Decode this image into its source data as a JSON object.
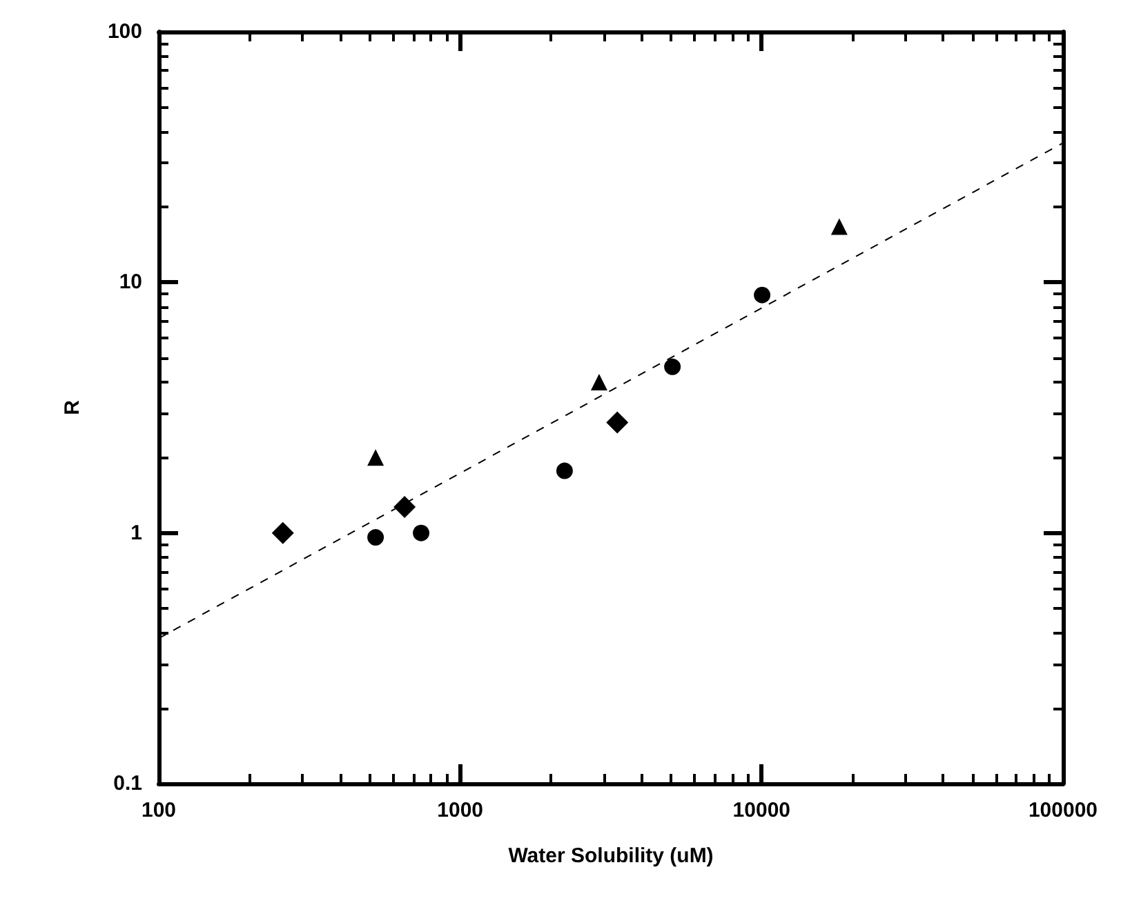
{
  "chart_data": {
    "type": "scatter",
    "xlabel": "Water Solubility (uM)",
    "ylabel": "R",
    "log": "xy",
    "xlim": [
      100,
      100000
    ],
    "xticks": [
      100,
      1000,
      10000,
      100000
    ],
    "ylim": [
      0.1,
      100
    ],
    "yticks": [
      0.1,
      1,
      10,
      100
    ],
    "grid": false,
    "series": [
      {
        "color": "#000000",
        "marker": "circle",
        "x": [
          524,
          742,
          2220,
          5060,
          10040
        ],
        "values": [
          0.96,
          1.0,
          1.77,
          4.6,
          8.9
        ]
      },
      {
        "color": "#000000",
        "marker": "triangle",
        "x": [
          524,
          2890,
          18100
        ],
        "values": [
          2.0,
          4.0,
          16.7
        ]
      },
      {
        "color": "#000000",
        "marker": "diamond",
        "x": [
          258,
          654,
          3320
        ],
        "values": [
          1.0,
          1.27,
          2.76
        ]
      },
      {
        "type": "line",
        "color": "#000000",
        "marker": "none",
        "line_style": "dashed",
        "x": [
          100,
          100000
        ],
        "values": [
          0.38,
          36
        ]
      }
    ]
  }
}
